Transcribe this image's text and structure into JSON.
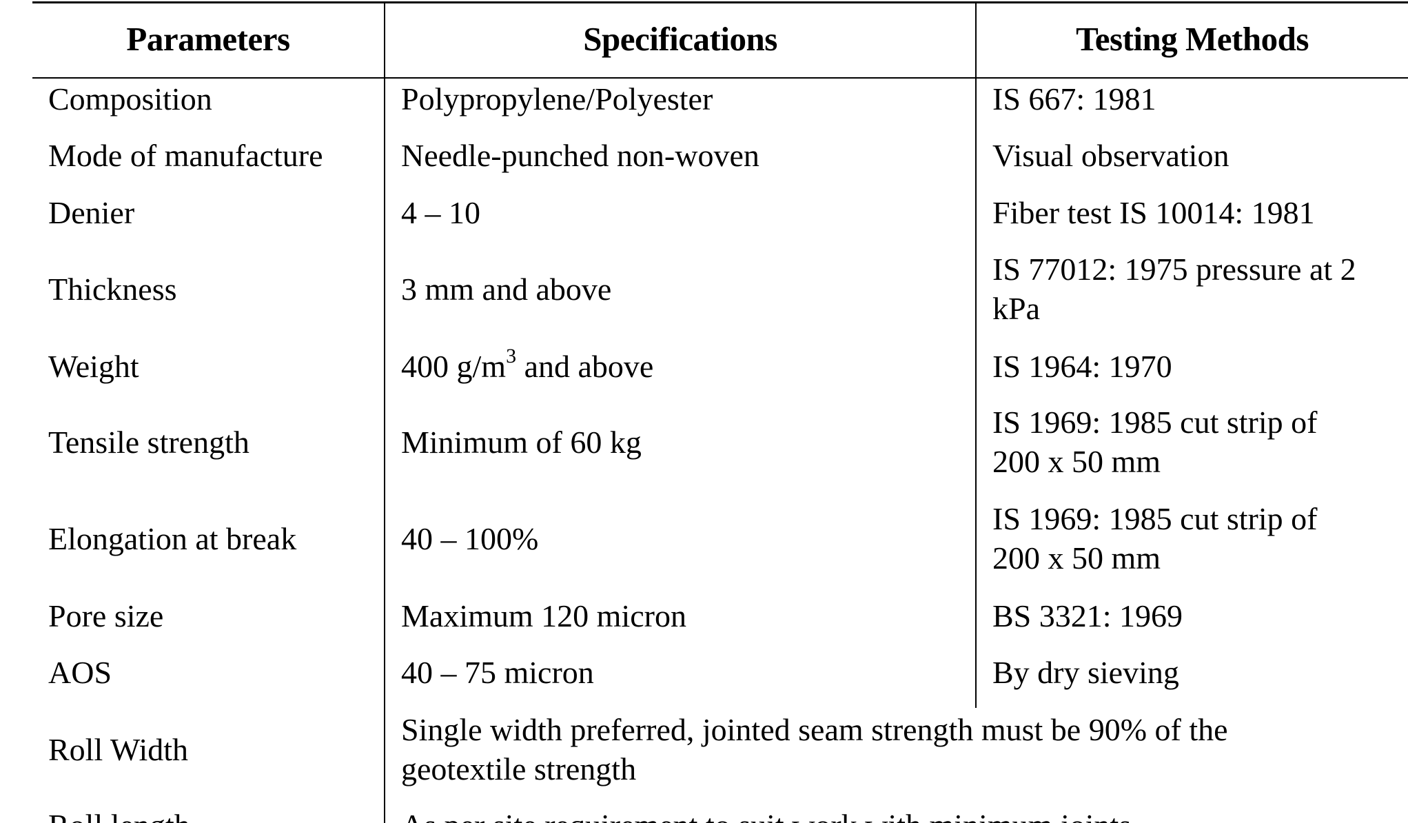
{
  "table": {
    "headers": [
      "Parameters",
      "Specifications",
      "Testing Methods"
    ],
    "rows": [
      {
        "parameter": "Composition",
        "specification": "Polypropylene/Polyester",
        "method": "IS 667: 1981"
      },
      {
        "parameter": "Mode of manufacture",
        "specification": "Needle-punched non-woven",
        "method": "Visual observation"
      },
      {
        "parameter": "Denier",
        "specification": "4 – 10",
        "method": "Fiber test IS 10014: 1981"
      },
      {
        "parameter": "Thickness",
        "specification": "3 mm and above",
        "method_line1": "IS 77012: 1975 pressure at 2",
        "method_line2": "kPa"
      },
      {
        "parameter": "Weight",
        "specification_pre": "400 g/m",
        "specification_sup": "3",
        "specification_post": " and above",
        "method": "IS 1964: 1970"
      },
      {
        "parameter": "Tensile strength",
        "specification": "Minimum of 60 kg",
        "method_line1": "IS 1969: 1985 cut strip of",
        "method_line2": "200 x 50 mm"
      },
      {
        "parameter": "Elongation at break",
        "specification": "40 – 100%",
        "method_line1": "IS 1969: 1985 cut strip of",
        "method_line2": "200 x 50 mm"
      },
      {
        "parameter": "Pore size",
        "specification": "Maximum 120 micron",
        "method": "BS 3321: 1969"
      },
      {
        "parameter": "AOS",
        "specification": "40 – 75 micron",
        "method": "By dry sieving"
      },
      {
        "parameter": "Roll Width",
        "specification_line1": "Single width preferred, jointed seam strength must be 90% of the",
        "specification_line2": "geotextile strength"
      },
      {
        "parameter": "Roll length",
        "specification": "As per site requirement to suit work with minimum joints"
      }
    ]
  }
}
